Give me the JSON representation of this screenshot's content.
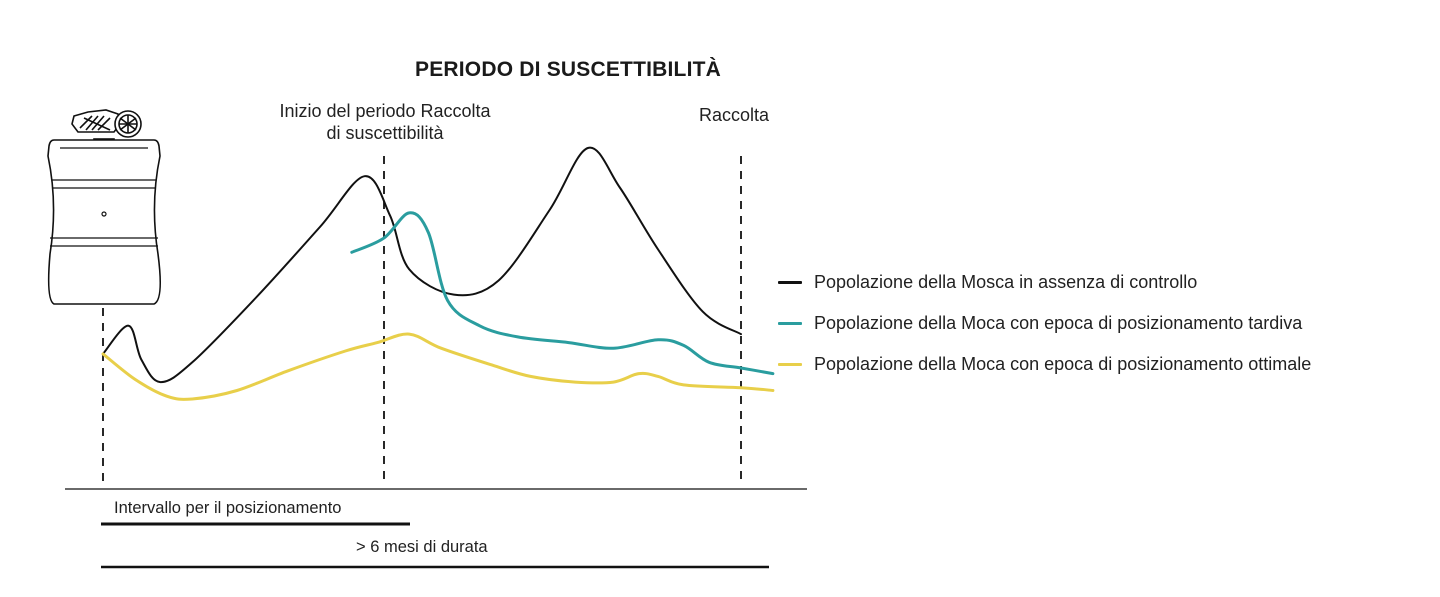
{
  "title": "PERIODO DI SUSCETTIBILITÀ",
  "markers": {
    "start_label": "Inizio del periodo Raccolta\ndi suscettibilità",
    "harvest_label": "Raccolta"
  },
  "legend": [
    {
      "label": "Popolazione della Mosca in assenza di controllo",
      "color": "#111111"
    },
    {
      "label": "Popolazione della Moca con epoca di posizionamento tardiva",
      "color": "#2a9d9f"
    },
    {
      "label": "Popolazione della Moca con epoca di posizionamento ottimale",
      "color": "#e8cf4a"
    }
  ],
  "timeline": {
    "interval_label": "Intervallo per il posizionamento",
    "duration_label": "> 6 mesi di durata"
  },
  "chart_data": {
    "type": "line",
    "title": "PERIODO DI SUSCETTIBILITÀ",
    "xlabel": "",
    "ylabel": "",
    "xlim": [
      0,
      100
    ],
    "ylim": [
      0,
      100
    ],
    "grid": false,
    "legend_position": "right",
    "series": [
      {
        "name": "Popolazione della Mosca in assenza di controllo",
        "color": "#111111",
        "points": [
          [
            0,
            27
          ],
          [
            4,
            37
          ],
          [
            6,
            25
          ],
          [
            9,
            17
          ],
          [
            14,
            24
          ],
          [
            24,
            47
          ],
          [
            34,
            72
          ],
          [
            41,
            90
          ],
          [
            45,
            76
          ],
          [
            48,
            57
          ],
          [
            55,
            48
          ],
          [
            62,
            53
          ],
          [
            70,
            78
          ],
          [
            76,
            100
          ],
          [
            81,
            86
          ],
          [
            87,
            64
          ],
          [
            94,
            42
          ],
          [
            100,
            34
          ]
        ]
      },
      {
        "name": "Popolazione della Moca con epoca di posizionamento tardiva",
        "color": "#2a9d9f",
        "points": [
          [
            39,
            63
          ],
          [
            44,
            68
          ],
          [
            48,
            77
          ],
          [
            51,
            70
          ],
          [
            54,
            46
          ],
          [
            59,
            37
          ],
          [
            65,
            33
          ],
          [
            73,
            31
          ],
          [
            80,
            29
          ],
          [
            87,
            32
          ],
          [
            91,
            30
          ],
          [
            95,
            24
          ],
          [
            100,
            22
          ],
          [
            105,
            20
          ]
        ]
      },
      {
        "name": "Popolazione della Moca con epoca di posizionamento ottimale",
        "color": "#e8cf4a",
        "points": [
          [
            0,
            27
          ],
          [
            5,
            18
          ],
          [
            10,
            12
          ],
          [
            14,
            11
          ],
          [
            21,
            14
          ],
          [
            29,
            21
          ],
          [
            38,
            28
          ],
          [
            43,
            31
          ],
          [
            48,
            34
          ],
          [
            53,
            29
          ],
          [
            61,
            23
          ],
          [
            67,
            19
          ],
          [
            74,
            17
          ],
          [
            80,
            17
          ],
          [
            84,
            20
          ],
          [
            87,
            19
          ],
          [
            91,
            16
          ],
          [
            100,
            15
          ],
          [
            105,
            14
          ]
        ]
      }
    ],
    "vertical_markers": [
      "start_of_season",
      "start_of_susceptibility",
      "harvest"
    ]
  }
}
